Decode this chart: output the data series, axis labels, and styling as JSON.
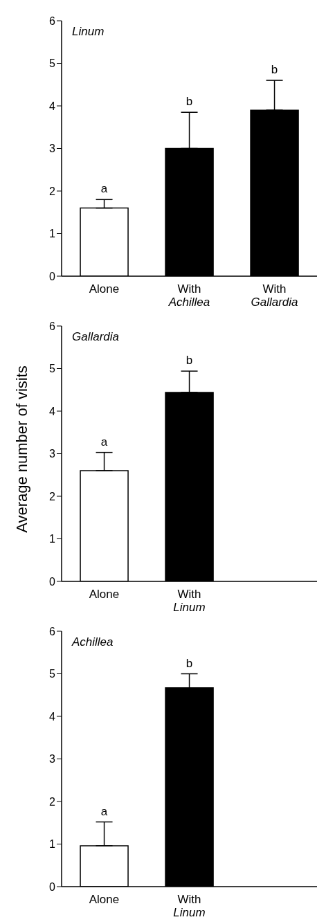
{
  "chart_data": [
    {
      "type": "bar",
      "title": "Linum",
      "categories": [
        "Alone",
        "With Achillea",
        "With Gallardia"
      ],
      "values": [
        1.6,
        3.0,
        3.9
      ],
      "colors": [
        "#ffffff",
        "#000000",
        "#000000"
      ],
      "errors": [
        [
          1.6,
          1.8
        ],
        [
          3.0,
          3.85
        ],
        [
          3.9,
          4.6
        ]
      ],
      "ylim": [
        0,
        6
      ],
      "yticks": [
        0,
        1,
        2,
        3,
        4,
        5,
        6
      ],
      "annotations": [
        "a",
        "b",
        "b"
      ]
    },
    {
      "type": "bar",
      "title": "Gallardia",
      "ylabel": "Average number of visits",
      "categories": [
        "Alone",
        "With Linum",
        null
      ],
      "values": [
        2.6,
        4.44,
        null
      ],
      "colors": [
        "#ffffff",
        "#000000",
        null
      ],
      "errors": [
        [
          2.6,
          3.03
        ],
        [
          4.44,
          4.94
        ],
        null
      ],
      "ylim": [
        0,
        6
      ],
      "yticks": [
        0,
        1,
        2,
        3,
        4,
        5,
        6
      ],
      "annotations": [
        "a",
        "b"
      ]
    },
    {
      "type": "bar",
      "title": "Achillea",
      "categories": [
        "Alone",
        "With Linum",
        null
      ],
      "values": [
        0.96,
        4.67,
        null
      ],
      "colors": [
        "#ffffff",
        "#000000",
        null
      ],
      "errors": [
        [
          0.96,
          1.52
        ],
        [
          4.67,
          5.0
        ],
        null
      ],
      "ylim": [
        0,
        6
      ],
      "yticks": [
        0,
        1,
        2,
        3,
        4,
        5,
        6
      ],
      "annotations": [
        "a",
        "b"
      ]
    }
  ]
}
